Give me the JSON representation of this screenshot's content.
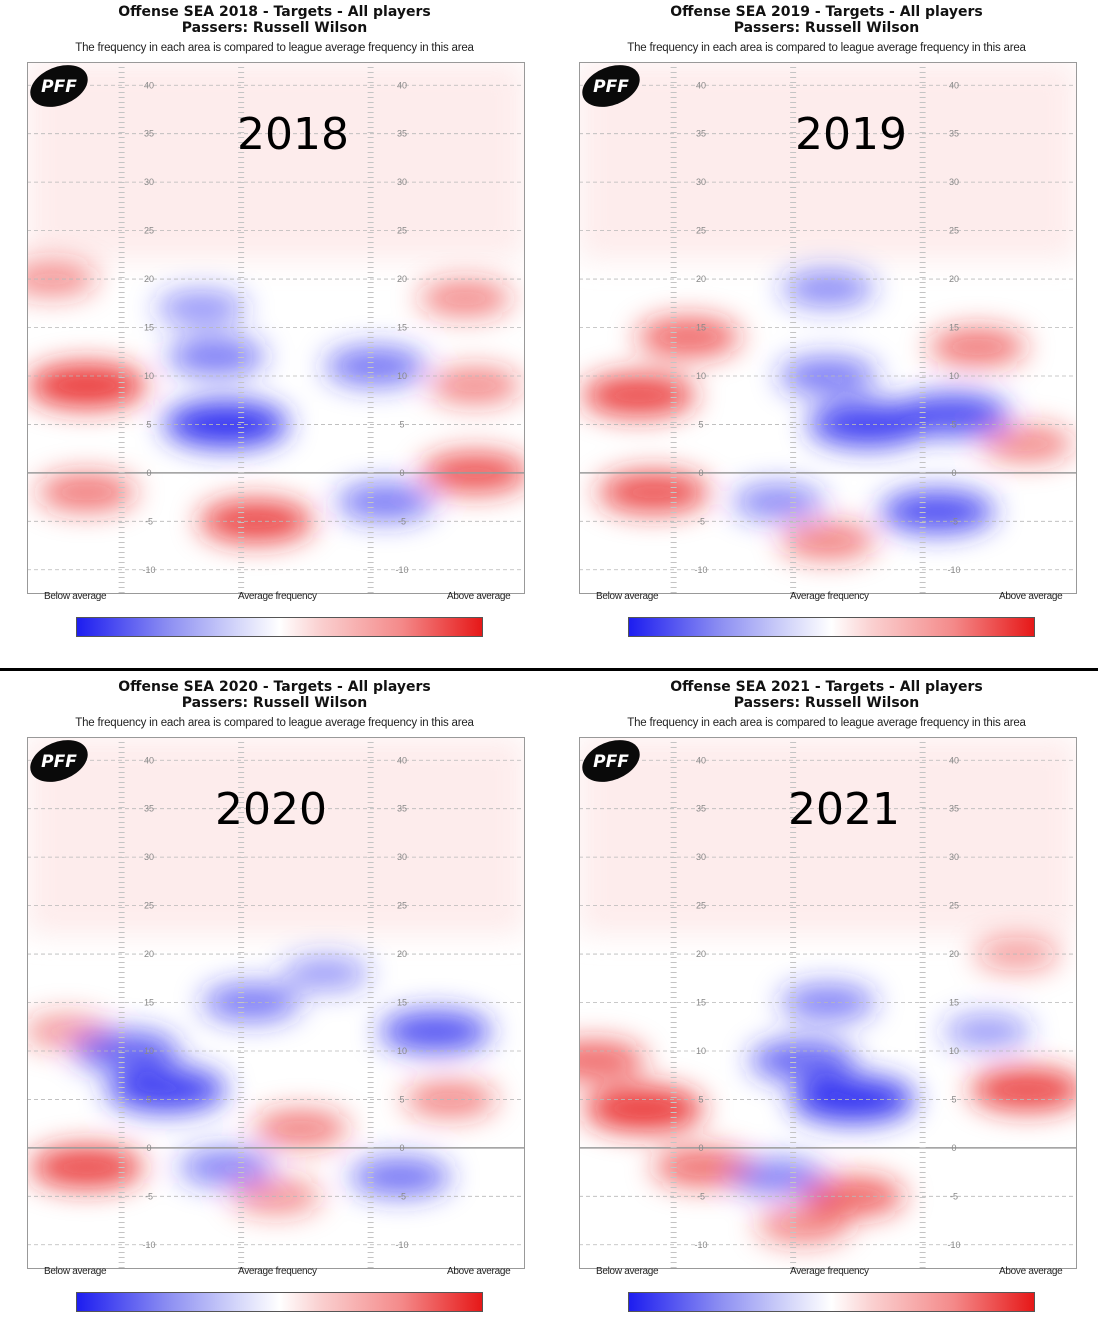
{
  "chart_data": [
    {
      "type": "heatmap",
      "title": "Offense SEA 2018 - Targets - All players",
      "subtitle_passers": "Passers: Russell Wilson",
      "note": "The frequency in each area is compared to league average frequency in this area",
      "year_label": "2018",
      "yard_lines": [
        40,
        35,
        30,
        25,
        20,
        15,
        10,
        5,
        0,
        -5,
        -10
      ],
      "legend_low": "Below average",
      "legend_mid": "Average frequency",
      "legend_high": "Above average",
      "logo_text": "PFF",
      "hot_spots": [
        {
          "x": 0.12,
          "y": 9,
          "v": 0.9
        },
        {
          "x": 0.46,
          "y": -5,
          "v": 0.8
        },
        {
          "x": 0.9,
          "y": 0,
          "v": 0.7
        },
        {
          "x": 0.88,
          "y": 18,
          "v": 0.4
        },
        {
          "x": 0.12,
          "y": -2,
          "v": 0.5
        },
        {
          "x": 0.9,
          "y": 9,
          "v": 0.4
        },
        {
          "x": 0.05,
          "y": 20,
          "v": 0.35
        },
        {
          "x": 0.4,
          "y": 5,
          "v": -1.0
        },
        {
          "x": 0.38,
          "y": 12,
          "v": -0.5
        },
        {
          "x": 0.7,
          "y": 11,
          "v": -0.55
        },
        {
          "x": 0.72,
          "y": -3,
          "v": -0.5
        },
        {
          "x": 0.35,
          "y": 17,
          "v": -0.35
        }
      ]
    },
    {
      "type": "heatmap",
      "title": "Offense SEA 2019 - Targets - All players",
      "subtitle_passers": "Passers: Russell Wilson",
      "note": "The frequency in each area is compared to league average frequency in this area",
      "year_label": "2019",
      "yard_lines": [
        40,
        35,
        30,
        25,
        20,
        15,
        10,
        5,
        0,
        -5,
        -10
      ],
      "legend_low": "Below average",
      "legend_mid": "Average frequency",
      "legend_high": "Above average",
      "logo_text": "PFF",
      "hot_spots": [
        {
          "x": 0.12,
          "y": 8,
          "v": 0.8
        },
        {
          "x": 0.22,
          "y": 14,
          "v": 0.6
        },
        {
          "x": 0.15,
          "y": -2,
          "v": 0.75
        },
        {
          "x": 0.8,
          "y": 13,
          "v": 0.5
        },
        {
          "x": 0.9,
          "y": 3,
          "v": 0.4
        },
        {
          "x": 0.5,
          "y": -7,
          "v": 0.45
        },
        {
          "x": 0.58,
          "y": 5,
          "v": -0.9
        },
        {
          "x": 0.75,
          "y": 6,
          "v": -0.8
        },
        {
          "x": 0.72,
          "y": -4,
          "v": -0.8
        },
        {
          "x": 0.5,
          "y": 10,
          "v": -0.5
        },
        {
          "x": 0.5,
          "y": 19,
          "v": -0.4
        },
        {
          "x": 0.4,
          "y": -3,
          "v": -0.4
        }
      ]
    },
    {
      "type": "heatmap",
      "title": "Offense SEA 2020 - Targets - All players",
      "subtitle_passers": "Passers: Russell Wilson",
      "note": "The frequency in each area is compared to league average frequency in this area",
      "year_label": "2020",
      "yard_lines": [
        40,
        35,
        30,
        25,
        20,
        15,
        10,
        5,
        0,
        -5,
        -10
      ],
      "legend_low": "Below average",
      "legend_mid": "Average frequency",
      "legend_high": "Above average",
      "logo_text": "PFF",
      "hot_spots": [
        {
          "x": 0.12,
          "y": -2,
          "v": 0.8
        },
        {
          "x": 0.55,
          "y": 2,
          "v": 0.45
        },
        {
          "x": 0.85,
          "y": 5,
          "v": 0.4
        },
        {
          "x": 0.08,
          "y": 12,
          "v": 0.3
        },
        {
          "x": 0.5,
          "y": -5,
          "v": 0.35
        },
        {
          "x": 0.28,
          "y": 6,
          "v": -0.9
        },
        {
          "x": 0.2,
          "y": 10,
          "v": -0.65
        },
        {
          "x": 0.82,
          "y": 12,
          "v": -0.75
        },
        {
          "x": 0.45,
          "y": 15,
          "v": -0.5
        },
        {
          "x": 0.75,
          "y": -3,
          "v": -0.55
        },
        {
          "x": 0.4,
          "y": -2,
          "v": -0.45
        },
        {
          "x": 0.6,
          "y": 18,
          "v": -0.3
        }
      ]
    },
    {
      "type": "heatmap",
      "title": "Offense SEA 2021 - Targets - All players",
      "subtitle_passers": "Passers: Russell Wilson",
      "note": "The frequency in each area is compared to league average frequency in this area",
      "year_label": "2021",
      "yard_lines": [
        40,
        35,
        30,
        25,
        20,
        15,
        10,
        5,
        0,
        -5,
        -10
      ],
      "legend_low": "Below average",
      "legend_mid": "Average frequency",
      "legend_high": "Above average",
      "logo_text": "PFF",
      "hot_spots": [
        {
          "x": 0.13,
          "y": 4,
          "v": 0.9
        },
        {
          "x": 0.9,
          "y": 6,
          "v": 0.8
        },
        {
          "x": 0.03,
          "y": 9,
          "v": 0.6
        },
        {
          "x": 0.25,
          "y": -2,
          "v": 0.55
        },
        {
          "x": 0.55,
          "y": -5,
          "v": 0.6
        },
        {
          "x": 0.45,
          "y": -8,
          "v": 0.4
        },
        {
          "x": 0.88,
          "y": 20,
          "v": 0.25
        },
        {
          "x": 0.55,
          "y": 5,
          "v": -1.0
        },
        {
          "x": 0.45,
          "y": 9,
          "v": -0.65
        },
        {
          "x": 0.5,
          "y": 15,
          "v": -0.45
        },
        {
          "x": 0.4,
          "y": -3,
          "v": -0.45
        },
        {
          "x": 0.82,
          "y": 12,
          "v": -0.3
        }
      ]
    }
  ]
}
